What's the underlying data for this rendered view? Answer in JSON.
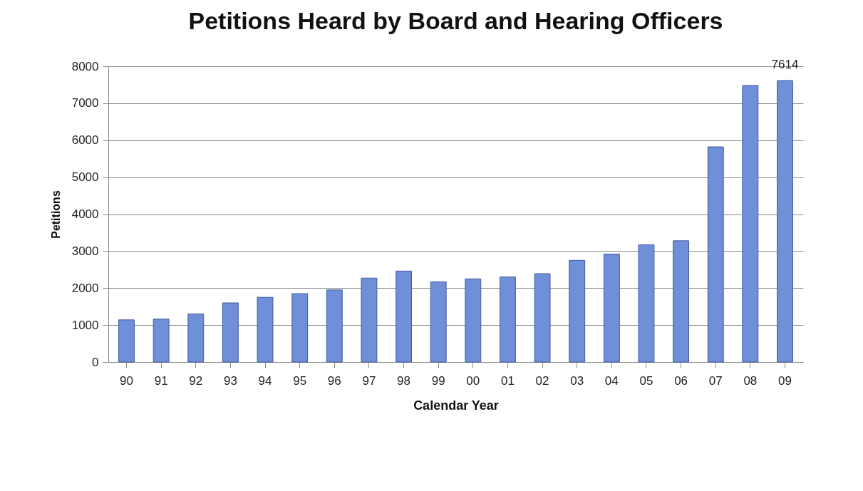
{
  "chart_data": {
    "type": "bar",
    "title": "Petitions Heard by Board and Hearing Officers",
    "xlabel": "Calendar Year",
    "ylabel": "Petitions",
    "categories": [
      "90",
      "91",
      "92",
      "93",
      "94",
      "95",
      "96",
      "97",
      "98",
      "99",
      "00",
      "01",
      "02",
      "03",
      "04",
      "05",
      "06",
      "07",
      "08",
      "09"
    ],
    "values": [
      1140,
      1160,
      1300,
      1600,
      1750,
      1850,
      1950,
      2270,
      2460,
      2170,
      2250,
      2300,
      2390,
      2750,
      2920,
      3170,
      3280,
      5820,
      7480,
      7614
    ],
    "value_labels": [
      null,
      null,
      null,
      null,
      null,
      null,
      null,
      null,
      null,
      null,
      null,
      null,
      null,
      null,
      null,
      null,
      null,
      null,
      null,
      "7614"
    ],
    "color": "#6f8fd8",
    "ylim": [
      0,
      8000
    ],
    "yticks": [
      0,
      1000,
      2000,
      3000,
      4000,
      5000,
      6000,
      7000,
      8000
    ],
    "grid": "y"
  }
}
